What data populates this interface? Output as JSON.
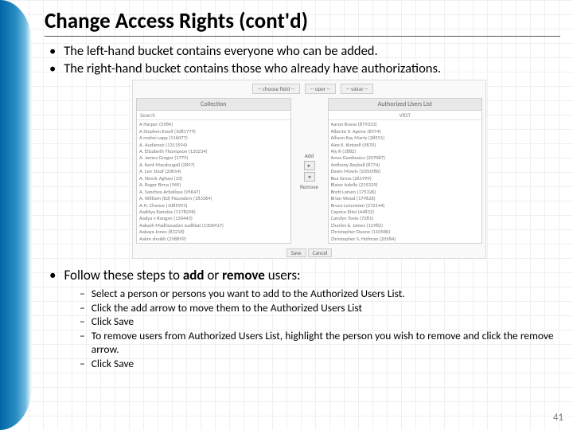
{
  "page": {
    "title": "Change Access Rights (cont'd)",
    "number": "41"
  },
  "intro": {
    "line1": "The left-hand bucket contains everyone who can be added.",
    "line2": " The right-hand bucket contains those who already have authorizations."
  },
  "screenshot": {
    "filters": {
      "f1": "-- choose field --",
      "f2": "-- oper --",
      "f3": "-- value --"
    },
    "left_header": "Collection",
    "right_header": "Authorized Users List",
    "search_label": "Search",
    "vrst_label": "VRST",
    "add_label": "Add",
    "remove_label": "Remove",
    "save_label": "Save",
    "cancel_label": "Cancel",
    "left_list": [
      "A Harper (5584)",
      "A Stephen Ewell (1081779)",
      "A roshni sapp (116077)",
      "A. Audience (1311594)",
      "A. Elizabeth Thompson (120234)",
      "A. James Gregor (1779)",
      "A. Kent Macdougall (2897)",
      "A. Lee Staaf (20014)",
      "A. Nemir Aghasi (33)",
      "A. Roger Bima (945)",
      "A. Sanchez-Arballasa (95647)",
      "A. William (Ed) Flounders (183364)",
      "A.H. Chance (1085993)",
      "Aaditya Ramdas (1178296)",
      "Aadya v Rangan (120443)",
      "Aakash Madhusudan sudhkat (1300417)",
      "Aakaya Jones (83218)",
      "Aalim sheikh (298899)"
    ],
    "right_list": [
      "Aaron Russo (879333)",
      "Alberto V. Apene (6974)",
      "Allison Kay Marty (28551)",
      "Alex K. Kintzell (5870)",
      "Aly R (1882)",
      "Anna Gozdowicz (207087)",
      "Anthony Royball (8774)",
      "Dawn Mowis (1050580)",
      "Bea Gross (261999)",
      "Blaise Isdelle (215339)",
      "Brett Larsen (175326)",
      "Brian Wood (179626)",
      "Bruce Lorentzen (272144)",
      "Caprice Eitel (44832)",
      "Carolyn Tovie (7281)",
      "Charles b. James (12982)",
      "Christopher Doane (110580)",
      "Christopher S. Hofman (20584)"
    ]
  },
  "follow": {
    "intro_a": "Follow these steps to ",
    "intro_b": "add",
    "intro_c": " or ",
    "intro_d": "remove",
    "intro_e": " users:"
  },
  "steps": {
    "s1": "Select a person or persons you want to add to the Authorized Users List.",
    "s2": "Click the add arrow to move them to the Authorized Users List",
    "s3": "Click Save",
    "s4": "To remove users from Authorized Users List, highlight the person you wish to remove and click the remove arrow.",
    "s5": "Click Save"
  }
}
